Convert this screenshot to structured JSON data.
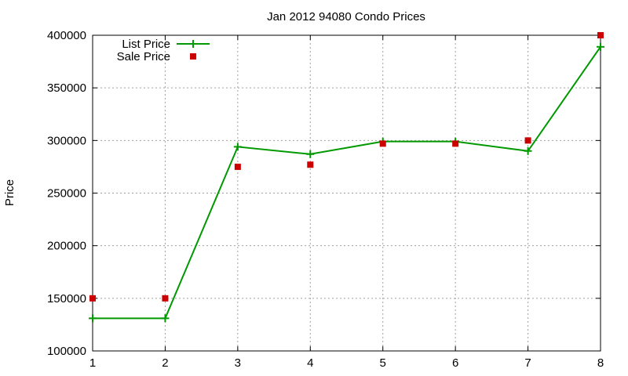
{
  "chart_data": {
    "type": "line",
    "title": "Jan 2012 94080 Condo Prices",
    "xlabel": "",
    "ylabel": "Price",
    "x": [
      1,
      2,
      3,
      4,
      5,
      6,
      7,
      8
    ],
    "xlim": [
      1,
      8
    ],
    "ylim": [
      100000,
      400000
    ],
    "x_ticks": [
      "1",
      "2",
      "3",
      "4",
      "5",
      "6",
      "7",
      "8"
    ],
    "y_ticks": [
      "100000",
      "150000",
      "200000",
      "250000",
      "300000",
      "350000",
      "400000"
    ],
    "grid": true,
    "legend_position": "top-left",
    "series": [
      {
        "name": "List Price",
        "style": "line-with-plus-markers",
        "color": "#009900",
        "values": [
          131000,
          131000,
          294000,
          287000,
          299000,
          299000,
          290000,
          389000
        ]
      },
      {
        "name": "Sale Price",
        "style": "square-markers",
        "color": "#cc0000",
        "values": [
          150000,
          150000,
          275000,
          277000,
          297000,
          297000,
          300000,
          400000
        ]
      }
    ]
  }
}
